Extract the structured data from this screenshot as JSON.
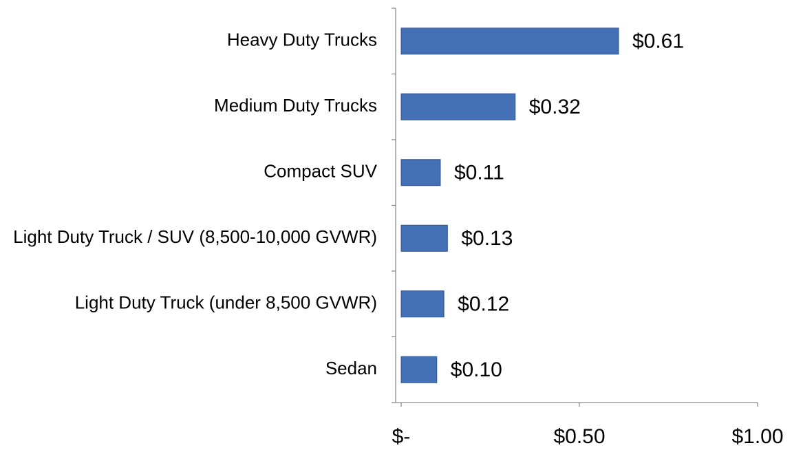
{
  "chart_data": {
    "type": "bar",
    "orientation": "horizontal",
    "categories": [
      "Heavy Duty Trucks",
      "Medium Duty Trucks",
      "Compact SUV",
      "Light Duty Truck / SUV (8,500-10,000 GVWR)",
      "Light Duty Truck (under 8,500 GVWR)",
      "Sedan"
    ],
    "values": [
      0.61,
      0.32,
      0.11,
      0.13,
      0.12,
      0.1
    ],
    "value_labels": [
      "$0.61",
      "$0.32",
      "$0.11",
      "$0.13",
      "$0.12",
      "$0.10"
    ],
    "color": "#4470b6",
    "xlim": [
      0,
      1
    ],
    "xticks": [
      {
        "value": 0,
        "label": "$-"
      },
      {
        "value": 0.5,
        "label": "$0.50"
      },
      {
        "value": 1,
        "label": "$1.00"
      }
    ],
    "grid": false
  }
}
